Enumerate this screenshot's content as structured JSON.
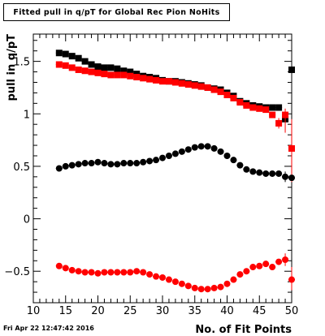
{
  "chart_data": {
    "type": "scatter",
    "title": "Fitted pull in q/pT for Global Rec Pion NoHits",
    "xlabel": "No. of Fit Points",
    "ylabel": "pull in q/pT",
    "xlim": [
      10,
      50
    ],
    "ylim": [
      -0.8,
      1.76
    ],
    "xticks": [
      10,
      15,
      20,
      25,
      30,
      35,
      40,
      45,
      50
    ],
    "yticks": [
      -0.5,
      0,
      0.5,
      1,
      1.5
    ],
    "grid": false,
    "legend": "none",
    "x": [
      14,
      15,
      16,
      17,
      18,
      19,
      20,
      21,
      22,
      23,
      24,
      25,
      26,
      27,
      28,
      29,
      30,
      31,
      32,
      33,
      34,
      35,
      36,
      37,
      38,
      39,
      40,
      41,
      42,
      43,
      44,
      45,
      46,
      47,
      48,
      49,
      50
    ],
    "series": [
      {
        "marker": "square",
        "color": "#000000",
        "values": [
          1.58,
          1.57,
          1.55,
          1.53,
          1.5,
          1.47,
          1.45,
          1.44,
          1.44,
          1.43,
          1.41,
          1.4,
          1.38,
          1.36,
          1.35,
          1.34,
          1.32,
          1.31,
          1.31,
          1.3,
          1.29,
          1.28,
          1.27,
          1.25,
          1.24,
          1.23,
          1.2,
          1.17,
          1.12,
          1.1,
          1.08,
          1.07,
          1.06,
          1.06,
          1.06,
          0.95,
          1.42
        ]
      },
      {
        "marker": "square",
        "color": "#ff0000",
        "values": [
          1.47,
          1.46,
          1.44,
          1.42,
          1.41,
          1.4,
          1.39,
          1.38,
          1.37,
          1.37,
          1.37,
          1.36,
          1.35,
          1.34,
          1.33,
          1.32,
          1.31,
          1.31,
          1.3,
          1.29,
          1.28,
          1.27,
          1.26,
          1.25,
          1.23,
          1.21,
          1.18,
          1.15,
          1.11,
          1.08,
          1.06,
          1.05,
          1.04,
          0.99,
          0.91,
          0.99,
          0.67
        ]
      },
      {
        "marker": "circle",
        "color": "#000000",
        "values": [
          0.48,
          0.5,
          0.51,
          0.52,
          0.53,
          0.53,
          0.54,
          0.53,
          0.52,
          0.52,
          0.53,
          0.53,
          0.53,
          0.54,
          0.55,
          0.56,
          0.58,
          0.6,
          0.62,
          0.64,
          0.66,
          0.68,
          0.69,
          0.69,
          0.67,
          0.64,
          0.6,
          0.56,
          0.51,
          0.47,
          0.45,
          0.44,
          0.43,
          0.43,
          0.43,
          0.4,
          0.39
        ]
      },
      {
        "marker": "circle",
        "color": "#ff0000",
        "values": [
          -0.45,
          -0.47,
          -0.49,
          -0.5,
          -0.51,
          -0.51,
          -0.52,
          -0.51,
          -0.51,
          -0.51,
          -0.51,
          -0.51,
          -0.5,
          -0.51,
          -0.53,
          -0.55,
          -0.56,
          -0.58,
          -0.6,
          -0.62,
          -0.64,
          -0.66,
          -0.67,
          -0.67,
          -0.66,
          -0.65,
          -0.62,
          -0.58,
          -0.53,
          -0.5,
          -0.46,
          -0.45,
          -0.43,
          -0.46,
          -0.41,
          -0.39,
          -0.58
        ]
      }
    ],
    "error_bars": {
      "x_half_width": 0.5,
      "large_error_points": [
        {
          "series": 0,
          "x": 50,
          "y_low": -0.6,
          "y_high": 1.76
        },
        {
          "series": 1,
          "x": 50,
          "y_low": 0.35,
          "y_high": 0.95
        },
        {
          "series": 1,
          "x": 49,
          "y_low": 0.82,
          "y_high": 1.05
        },
        {
          "series": 1,
          "x": 48,
          "y_low": 0.86,
          "y_high": 0.96
        },
        {
          "series": 3,
          "x": 50,
          "y_low": -0.68,
          "y_high": -0.46
        },
        {
          "series": 3,
          "x": 49,
          "y_low": -0.45,
          "y_high": -0.33
        },
        {
          "series": 2,
          "x": 49,
          "y_low": 0.35,
          "y_high": 0.45
        }
      ]
    }
  },
  "footer": {
    "date": "Fri Apr 22 12:47:42 2016"
  }
}
